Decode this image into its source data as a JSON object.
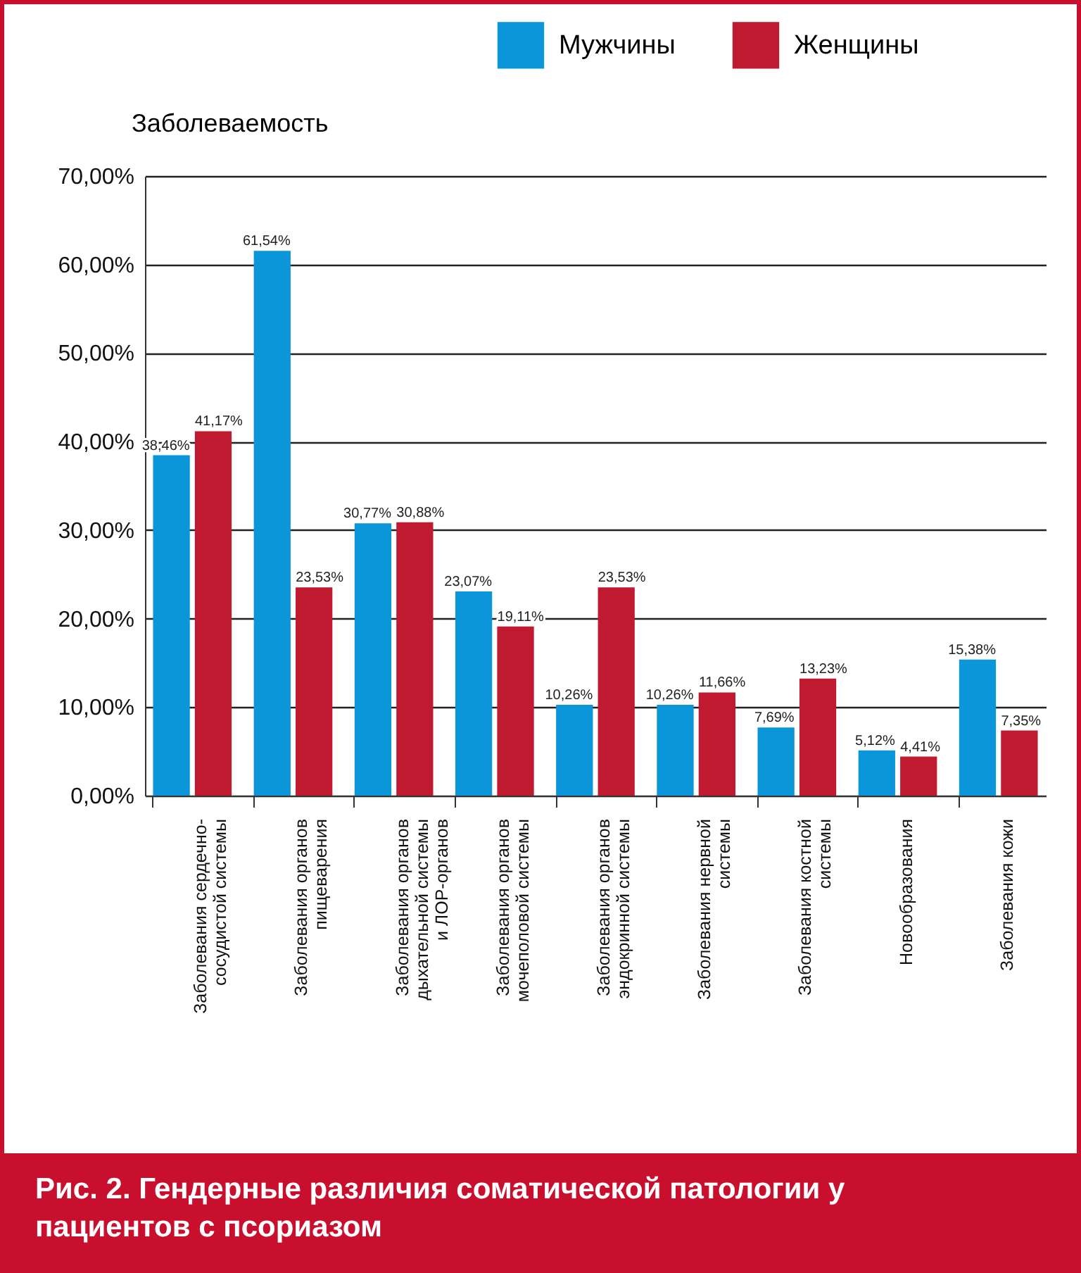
{
  "chart_data": {
    "type": "bar",
    "title": "Рис. 2. Гендерные различия соматической патологии у пациентов с псориазом",
    "ylabel": "Заболеваемость",
    "categories": [
      "Заболевания сердечно-\nсосудистой системы",
      "Заболевания органов\nпищеварения",
      "Заболевания органов\nдыхательной системы\nи ЛОР-органов",
      "Заболевания органов\nмочеполовой системы",
      "Заболевания органов\nэндокринной системы",
      "Заболевания нервной\nсистемы",
      "Заболевания костной\nсистемы",
      "Новообразования",
      "Заболевания кожи"
    ],
    "series": [
      {
        "name": "Мужчины",
        "color": "#0a96d8",
        "values": [
          38.46,
          61.54,
          30.77,
          23.07,
          10.26,
          10.26,
          7.69,
          5.12,
          15.38
        ],
        "value_labels": [
          "38,46%",
          "61,54%",
          "30,77%",
          "23,07%",
          "10,26%",
          "10,26%",
          "7,69%",
          "5,12%",
          "15,38%"
        ]
      },
      {
        "name": "Женщины",
        "color": "#c01a30",
        "values": [
          41.17,
          23.53,
          30.88,
          19.11,
          23.53,
          11.66,
          13.23,
          4.41,
          7.35
        ],
        "value_labels": [
          "41,17%",
          "23,53%",
          "30,88%",
          "19,11%",
          "23,53%",
          "11,66%",
          "13,23%",
          "4,41%",
          "7,35%"
        ]
      }
    ],
    "ylim": [
      0,
      70
    ],
    "yticks": [
      {
        "value": 0,
        "label": "0,00%"
      },
      {
        "value": 10,
        "label": "10,00%"
      },
      {
        "value": 20,
        "label": "20,00%"
      },
      {
        "value": 30,
        "label": "30,00%"
      },
      {
        "value": 40,
        "label": "40,00%"
      },
      {
        "value": 50,
        "label": "50,00%"
      },
      {
        "value": 60,
        "label": "60,00%"
      },
      {
        "value": 70,
        "label": "70,00%"
      }
    ],
    "grid": "y",
    "legend": "top right"
  }
}
